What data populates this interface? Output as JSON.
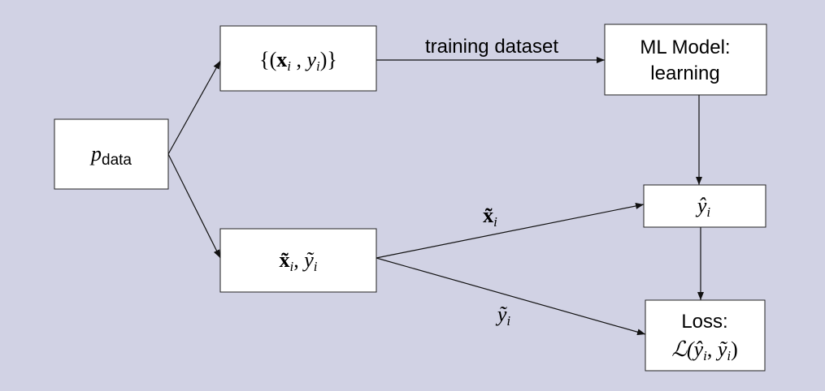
{
  "nodes": [
    {
      "label": {
        "base": "p",
        "sub": "data"
      }
    },
    {
      "label": [
        "{(",
        "x",
        "i",
        " , ",
        "y",
        "i",
        ")}"
      ]
    },
    {
      "label": [
        "ML Model:",
        "learning"
      ]
    },
    {
      "label": [
        "x̃",
        "i",
        ", ",
        "ỹ",
        "i"
      ]
    },
    {
      "label": [
        "ŷ",
        "i"
      ]
    },
    {
      "label": [
        "Loss:",
        "ℒ(",
        "ŷ",
        "i",
        ", ",
        "ỹ",
        "i",
        ")"
      ]
    }
  ],
  "edges": [
    {
      "label": "training dataset"
    },
    {
      "label": [
        "x̃",
        "i"
      ]
    },
    {
      "label": [
        "ỹ",
        "i"
      ]
    }
  ]
}
